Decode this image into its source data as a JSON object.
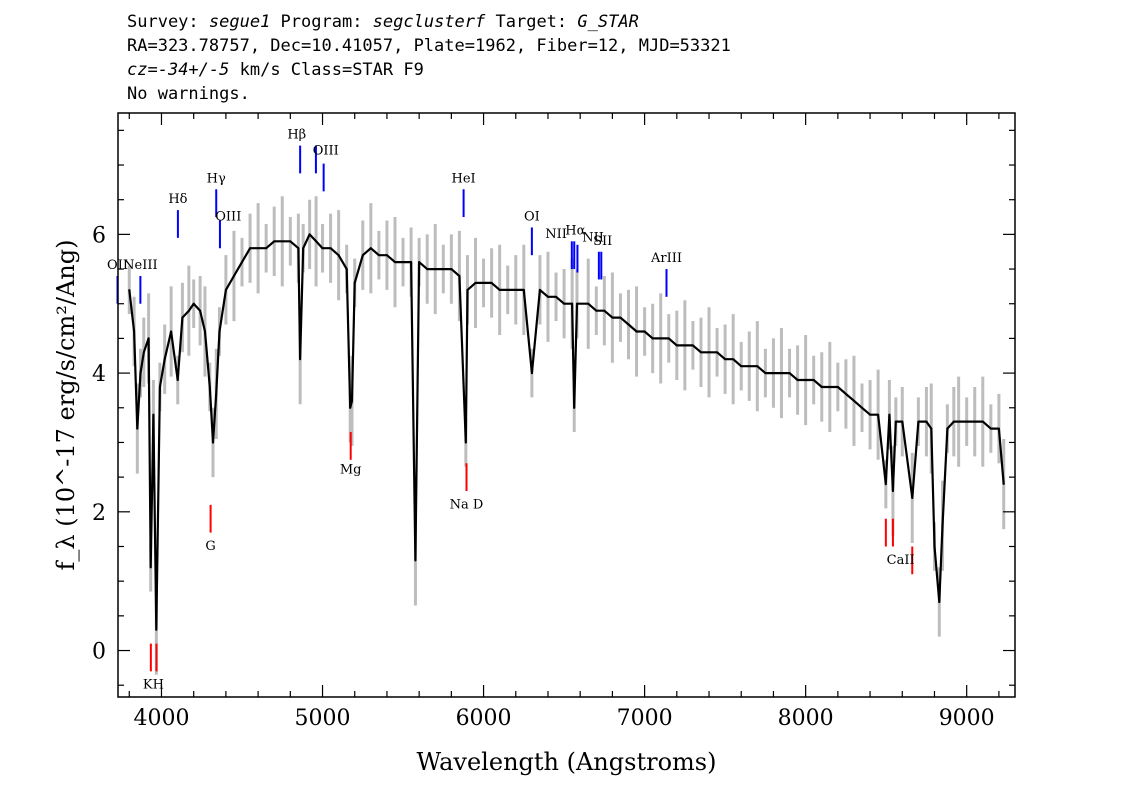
{
  "header": {
    "line1": {
      "survey_label": "Survey: ",
      "survey": "segue1",
      "program_label": " Program: ",
      "program": "segclusterf",
      "target_label": " Target: ",
      "target": "G_STAR"
    },
    "line2": "RA=323.78757, Dec=10.41057, Plate=1962, Fiber=12, MJD=53321",
    "line3": {
      "cz_label": "cz=",
      "cz": "-34+/-5",
      "rest": " km/s Class=STAR F9"
    },
    "line4": "No warnings."
  },
  "colors": {
    "flux": "#000000",
    "error": "#bdbdbd",
    "emission_line": "#0000ff",
    "absorption_line": "#ff0000"
  },
  "chart_data": {
    "type": "line",
    "xlabel": "Wavelength (Angstroms)",
    "ylabel": "f_λ (10^-17 erg/s/cm²/Ang)",
    "xlim": [
      3730,
      9300
    ],
    "ylim": [
      -0.67,
      7.75
    ],
    "x_ticks": [
      "4000",
      "5000",
      "6000",
      "7000",
      "8000",
      "9000"
    ],
    "y_ticks": [
      "0",
      "2",
      "4",
      "6"
    ],
    "series": [
      {
        "points": [
          [
            3800,
            5.2
          ],
          [
            3830,
            4.6
          ],
          [
            3850,
            3.2
          ],
          [
            3870,
            4.0
          ],
          [
            3890,
            4.3
          ],
          [
            3920,
            4.5
          ],
          [
            3933,
            1.2
          ],
          [
            3950,
            3.4
          ],
          [
            3968,
            0.3
          ],
          [
            3990,
            3.8
          ],
          [
            4020,
            4.2
          ],
          [
            4060,
            4.6
          ],
          [
            4101,
            3.9
          ],
          [
            4130,
            4.8
          ],
          [
            4170,
            4.9
          ],
          [
            4200,
            5.0
          ],
          [
            4240,
            4.9
          ],
          [
            4270,
            4.6
          ],
          [
            4300,
            3.8
          ],
          [
            4320,
            3.0
          ],
          [
            4340,
            3.7
          ],
          [
            4360,
            4.6
          ],
          [
            4400,
            5.2
          ],
          [
            4450,
            5.4
          ],
          [
            4500,
            5.6
          ],
          [
            4550,
            5.8
          ],
          [
            4600,
            5.8
          ],
          [
            4650,
            5.8
          ],
          [
            4700,
            5.9
          ],
          [
            4750,
            5.9
          ],
          [
            4800,
            5.9
          ],
          [
            4850,
            5.8
          ],
          [
            4861,
            4.2
          ],
          [
            4880,
            5.8
          ],
          [
            4920,
            6.0
          ],
          [
            4960,
            5.9
          ],
          [
            5000,
            5.8
          ],
          [
            5050,
            5.8
          ],
          [
            5100,
            5.7
          ],
          [
            5150,
            5.5
          ],
          [
            5172,
            3.5
          ],
          [
            5183,
            3.6
          ],
          [
            5200,
            5.3
          ],
          [
            5250,
            5.7
          ],
          [
            5300,
            5.8
          ],
          [
            5350,
            5.7
          ],
          [
            5400,
            5.7
          ],
          [
            5450,
            5.6
          ],
          [
            5500,
            5.6
          ],
          [
            5550,
            5.6
          ],
          [
            5577,
            1.3
          ],
          [
            5600,
            5.6
          ],
          [
            5650,
            5.5
          ],
          [
            5700,
            5.5
          ],
          [
            5750,
            5.5
          ],
          [
            5800,
            5.5
          ],
          [
            5850,
            5.4
          ],
          [
            5890,
            3.0
          ],
          [
            5900,
            5.2
          ],
          [
            5950,
            5.3
          ],
          [
            6000,
            5.3
          ],
          [
            6050,
            5.3
          ],
          [
            6100,
            5.2
          ],
          [
            6150,
            5.2
          ],
          [
            6200,
            5.2
          ],
          [
            6250,
            5.2
          ],
          [
            6300,
            4.0
          ],
          [
            6350,
            5.2
          ],
          [
            6400,
            5.1
          ],
          [
            6450,
            5.1
          ],
          [
            6500,
            5.0
          ],
          [
            6550,
            5.0
          ],
          [
            6563,
            3.5
          ],
          [
            6580,
            5.0
          ],
          [
            6650,
            5.0
          ],
          [
            6700,
            4.9
          ],
          [
            6750,
            4.9
          ],
          [
            6800,
            4.8
          ],
          [
            6850,
            4.8
          ],
          [
            6900,
            4.7
          ],
          [
            6950,
            4.6
          ],
          [
            7000,
            4.6
          ],
          [
            7050,
            4.5
          ],
          [
            7100,
            4.5
          ],
          [
            7150,
            4.5
          ],
          [
            7200,
            4.4
          ],
          [
            7250,
            4.4
          ],
          [
            7300,
            4.4
          ],
          [
            7350,
            4.3
          ],
          [
            7400,
            4.3
          ],
          [
            7450,
            4.3
          ],
          [
            7500,
            4.2
          ],
          [
            7550,
            4.2
          ],
          [
            7600,
            4.1
          ],
          [
            7650,
            4.1
          ],
          [
            7700,
            4.1
          ],
          [
            7750,
            4.0
          ],
          [
            7800,
            4.0
          ],
          [
            7850,
            4.0
          ],
          [
            7900,
            4.0
          ],
          [
            7950,
            3.9
          ],
          [
            8000,
            3.9
          ],
          [
            8050,
            3.9
          ],
          [
            8100,
            3.8
          ],
          [
            8150,
            3.8
          ],
          [
            8200,
            3.8
          ],
          [
            8250,
            3.7
          ],
          [
            8300,
            3.6
          ],
          [
            8350,
            3.5
          ],
          [
            8400,
            3.4
          ],
          [
            8450,
            3.4
          ],
          [
            8498,
            2.4
          ],
          [
            8520,
            3.4
          ],
          [
            8542,
            2.3
          ],
          [
            8560,
            3.3
          ],
          [
            8600,
            3.3
          ],
          [
            8662,
            2.2
          ],
          [
            8700,
            3.3
          ],
          [
            8750,
            3.3
          ],
          [
            8780,
            3.2
          ],
          [
            8800,
            1.5
          ],
          [
            8830,
            0.7
          ],
          [
            8850,
            1.8
          ],
          [
            8880,
            3.2
          ],
          [
            8920,
            3.3
          ],
          [
            8950,
            3.3
          ],
          [
            9000,
            3.3
          ],
          [
            9050,
            3.3
          ],
          [
            9100,
            3.3
          ],
          [
            9150,
            3.2
          ],
          [
            9200,
            3.2
          ],
          [
            9230,
            2.4
          ]
        ]
      }
    ],
    "emission_lines": [
      {
        "label": "OII",
        "x": 3727,
        "y0": 5.0,
        "y1": 5.4
      },
      {
        "label": "NeIII",
        "x": 3869,
        "y0": 5.0,
        "y1": 5.4
      },
      {
        "label": "Hδ",
        "x": 4102,
        "y0": 5.95,
        "y1": 6.35
      },
      {
        "label": "Hγ",
        "x": 4340,
        "y0": 6.25,
        "y1": 6.65
      },
      {
        "label": "OIII",
        "x": 4363,
        "y0": 5.8,
        "y1": 6.2
      },
      {
        "label": "Hβ",
        "x": 4861,
        "y0": 6.88,
        "y1": 7.28
      },
      {
        "label": "OIII",
        "x": 4959,
        "y0": 6.88,
        "y1": 7.28
      },
      {
        "label": "OIII",
        "x": 5007,
        "y0": 6.62,
        "y1": 7.02
      },
      {
        "label": "HeI",
        "x": 5876,
        "y0": 6.25,
        "y1": 6.65
      },
      {
        "label": "OI",
        "x": 6300,
        "y0": 5.7,
        "y1": 6.1
      },
      {
        "label": "NII",
        "x": 6548,
        "y0": 5.5,
        "y1": 5.9
      },
      {
        "label": "Hα",
        "x": 6563,
        "y0": 5.5,
        "y1": 5.9
      },
      {
        "label": "NII",
        "x": 6583,
        "y0": 5.45,
        "y1": 5.85
      },
      {
        "label": "SII",
        "x": 6716,
        "y0": 5.35,
        "y1": 5.75
      },
      {
        "label": "SII",
        "x": 6731,
        "y0": 5.35,
        "y1": 5.75
      },
      {
        "label": "ArIII",
        "x": 7136,
        "y0": 5.1,
        "y1": 5.5
      }
    ],
    "absorption_lines": [
      {
        "label": "K",
        "x": 3934,
        "y0": -0.3,
        "y1": 0.1
      },
      {
        "label": "H",
        "x": 3969,
        "y0": -0.3,
        "y1": 0.1
      },
      {
        "label": "G",
        "x": 4305,
        "y0": 1.7,
        "y1": 2.1
      },
      {
        "label": "Mg",
        "x": 5175,
        "y0": 2.75,
        "y1": 3.15
      },
      {
        "label": "Na D",
        "x": 5894,
        "y0": 2.3,
        "y1": 2.7
      },
      {
        "label": "CaII",
        "x": 8498,
        "y0": 1.5,
        "y1": 1.9
      },
      {
        "label": "CaII",
        "x": 8542,
        "y0": 1.5,
        "y1": 1.9
      },
      {
        "label": "CaII",
        "x": 8662,
        "y0": 1.1,
        "y1": 1.5
      }
    ],
    "text_labels": [
      {
        "text": "OII",
        "x": 3727,
        "y": 5.5
      },
      {
        "text": "NeIII",
        "x": 3869,
        "y": 5.5
      },
      {
        "text": "Hδ",
        "x": 4102,
        "y": 6.45
      },
      {
        "text": "Hγ",
        "x": 4340,
        "y": 6.75
      },
      {
        "text": "OIII",
        "x": 4415,
        "y": 6.2
      },
      {
        "text": "Hβ",
        "x": 4840,
        "y": 7.38
      },
      {
        "text": "OIII",
        "x": 5020,
        "y": 7.15
      },
      {
        "text": "HeI",
        "x": 5876,
        "y": 6.75
      },
      {
        "text": "OI",
        "x": 6300,
        "y": 6.2
      },
      {
        "text": "NII",
        "x": 6450,
        "y": 5.95
      },
      {
        "text": "Hα",
        "x": 6570,
        "y": 6.0
      },
      {
        "text": "NII",
        "x": 6680,
        "y": 5.9
      },
      {
        "text": "SII",
        "x": 6740,
        "y": 5.85
      },
      {
        "text": "ArIII",
        "x": 7136,
        "y": 5.6
      },
      {
        "text": "KH",
        "x": 3950,
        "y": -0.55
      },
      {
        "text": "G",
        "x": 4305,
        "y": 1.45
      },
      {
        "text": "Mg",
        "x": 5175,
        "y": 2.55
      },
      {
        "text": "Na D",
        "x": 5894,
        "y": 2.05
      },
      {
        "text": "CaII",
        "x": 8590,
        "y": 1.25
      }
    ]
  }
}
